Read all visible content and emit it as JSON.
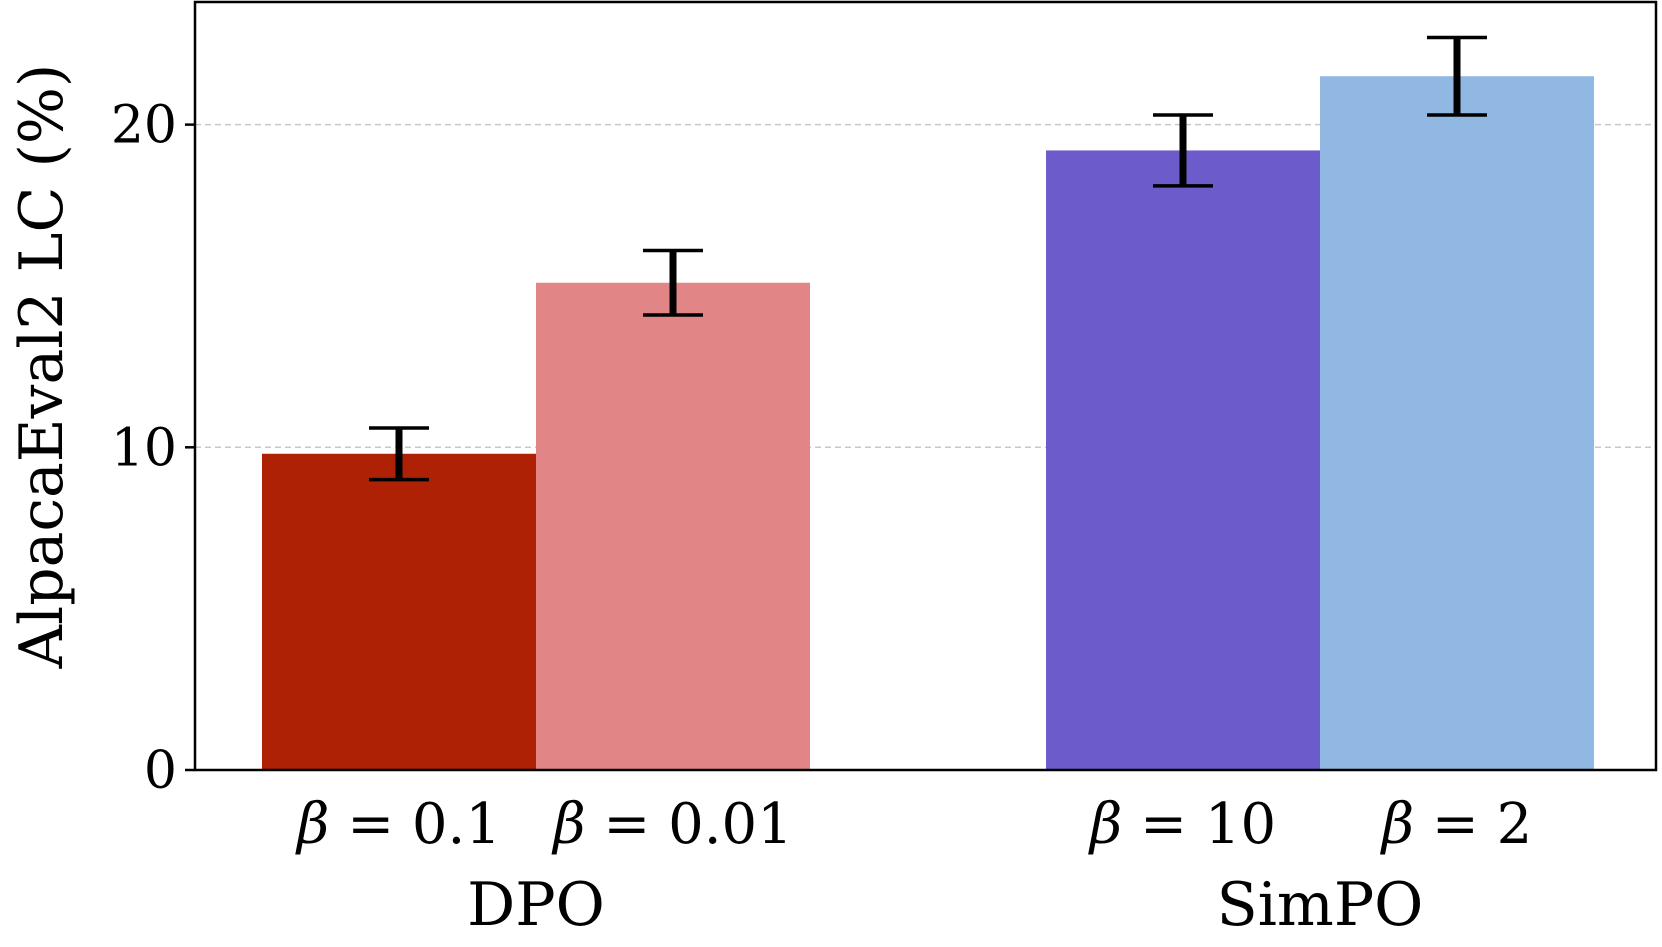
{
  "chart_data": {
    "type": "bar",
    "title": "",
    "xlabel": "",
    "ylabel": "AlpacaEval2 LC (%)",
    "ylim": [
      0,
      23.8
    ],
    "yticks": [
      0,
      10,
      20
    ],
    "yticks_labels": [
      "0",
      "10",
      "20"
    ],
    "grid": "horizontal dashed at y ticks",
    "groups": [
      {
        "name": "DPO",
        "bars": [
          {
            "label": "β = 0.1",
            "value": 9.8,
            "error": 0.8,
            "color": "#ae2105"
          },
          {
            "label": "β = 0.01",
            "value": 15.1,
            "error": 1.0,
            "color": "#e28587"
          }
        ]
      },
      {
        "name": "SimPO",
        "bars": [
          {
            "label": "β = 10",
            "value": 19.2,
            "error": 1.1,
            "color": "#6b5bcb"
          },
          {
            "label": "β = 2",
            "value": 21.5,
            "error": 1.2,
            "color": "#90b8e3"
          }
        ]
      }
    ]
  }
}
